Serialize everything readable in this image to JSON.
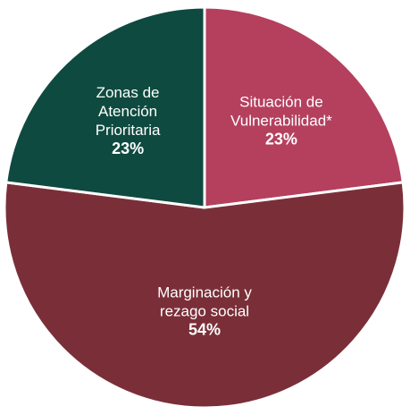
{
  "chart_data": {
    "type": "pie",
    "categories": [
      "Situación de Vulnerabilidad*",
      "Marginación y rezago social",
      "Zonas de Atención Prioritaria"
    ],
    "values": [
      23,
      54,
      23
    ],
    "value_labels": [
      "23%",
      "54%",
      "23%"
    ],
    "colors": [
      "#b4405e",
      "#7a2f38",
      "#0e4a3f"
    ]
  }
}
